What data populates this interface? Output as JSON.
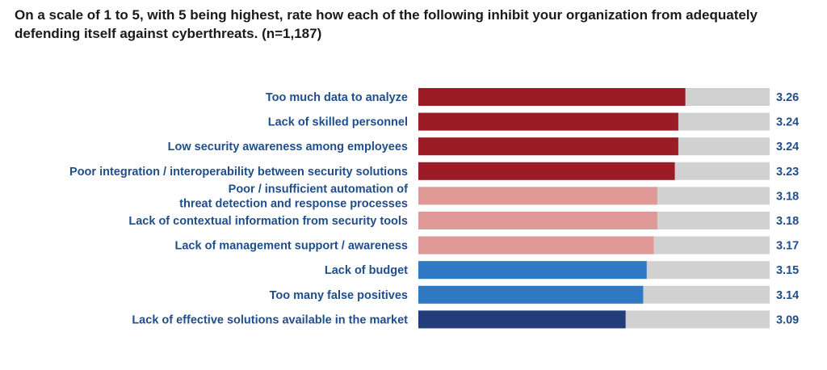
{
  "chart_data": {
    "type": "bar",
    "orientation": "horizontal",
    "title": "On a scale of 1 to 5, with 5 being highest, rate how each of the following inhibit your organization from adequately defending itself against cyberthreats. (n=1,187)",
    "categories": [
      [
        "Too much data to analyze"
      ],
      [
        "Lack of skilled personnel"
      ],
      [
        "Low security awareness among employees"
      ],
      [
        "Poor integration / interoperability between security solutions"
      ],
      [
        "Poor / insufficient automation of",
        "threat detection and response processes"
      ],
      [
        "Lack of contextual information from security tools"
      ],
      [
        "Lack of management support / awareness"
      ],
      [
        "Lack of budget"
      ],
      [
        "Too many false positives"
      ],
      [
        "Lack of effective solutions available in the market"
      ]
    ],
    "values": [
      3.26,
      3.24,
      3.24,
      3.23,
      3.18,
      3.18,
      3.17,
      3.15,
      3.14,
      3.09
    ],
    "value_labels": [
      "3.26",
      "3.24",
      "3.24",
      "3.23",
      "3.18",
      "3.18",
      "3.17",
      "3.15",
      "3.14",
      "3.09"
    ],
    "colors": [
      "#9b1c24",
      "#9b1c24",
      "#9b1c24",
      "#9b1c24",
      "#df9a97",
      "#df9a97",
      "#df9a97",
      "#2f78c4",
      "#2f78c4",
      "#233d7b"
    ],
    "background_color": "#d1d1d1",
    "label_color": "#1f4e8c",
    "xlim": [
      2.5,
      3.5
    ],
    "grid": false,
    "legend": "none"
  }
}
